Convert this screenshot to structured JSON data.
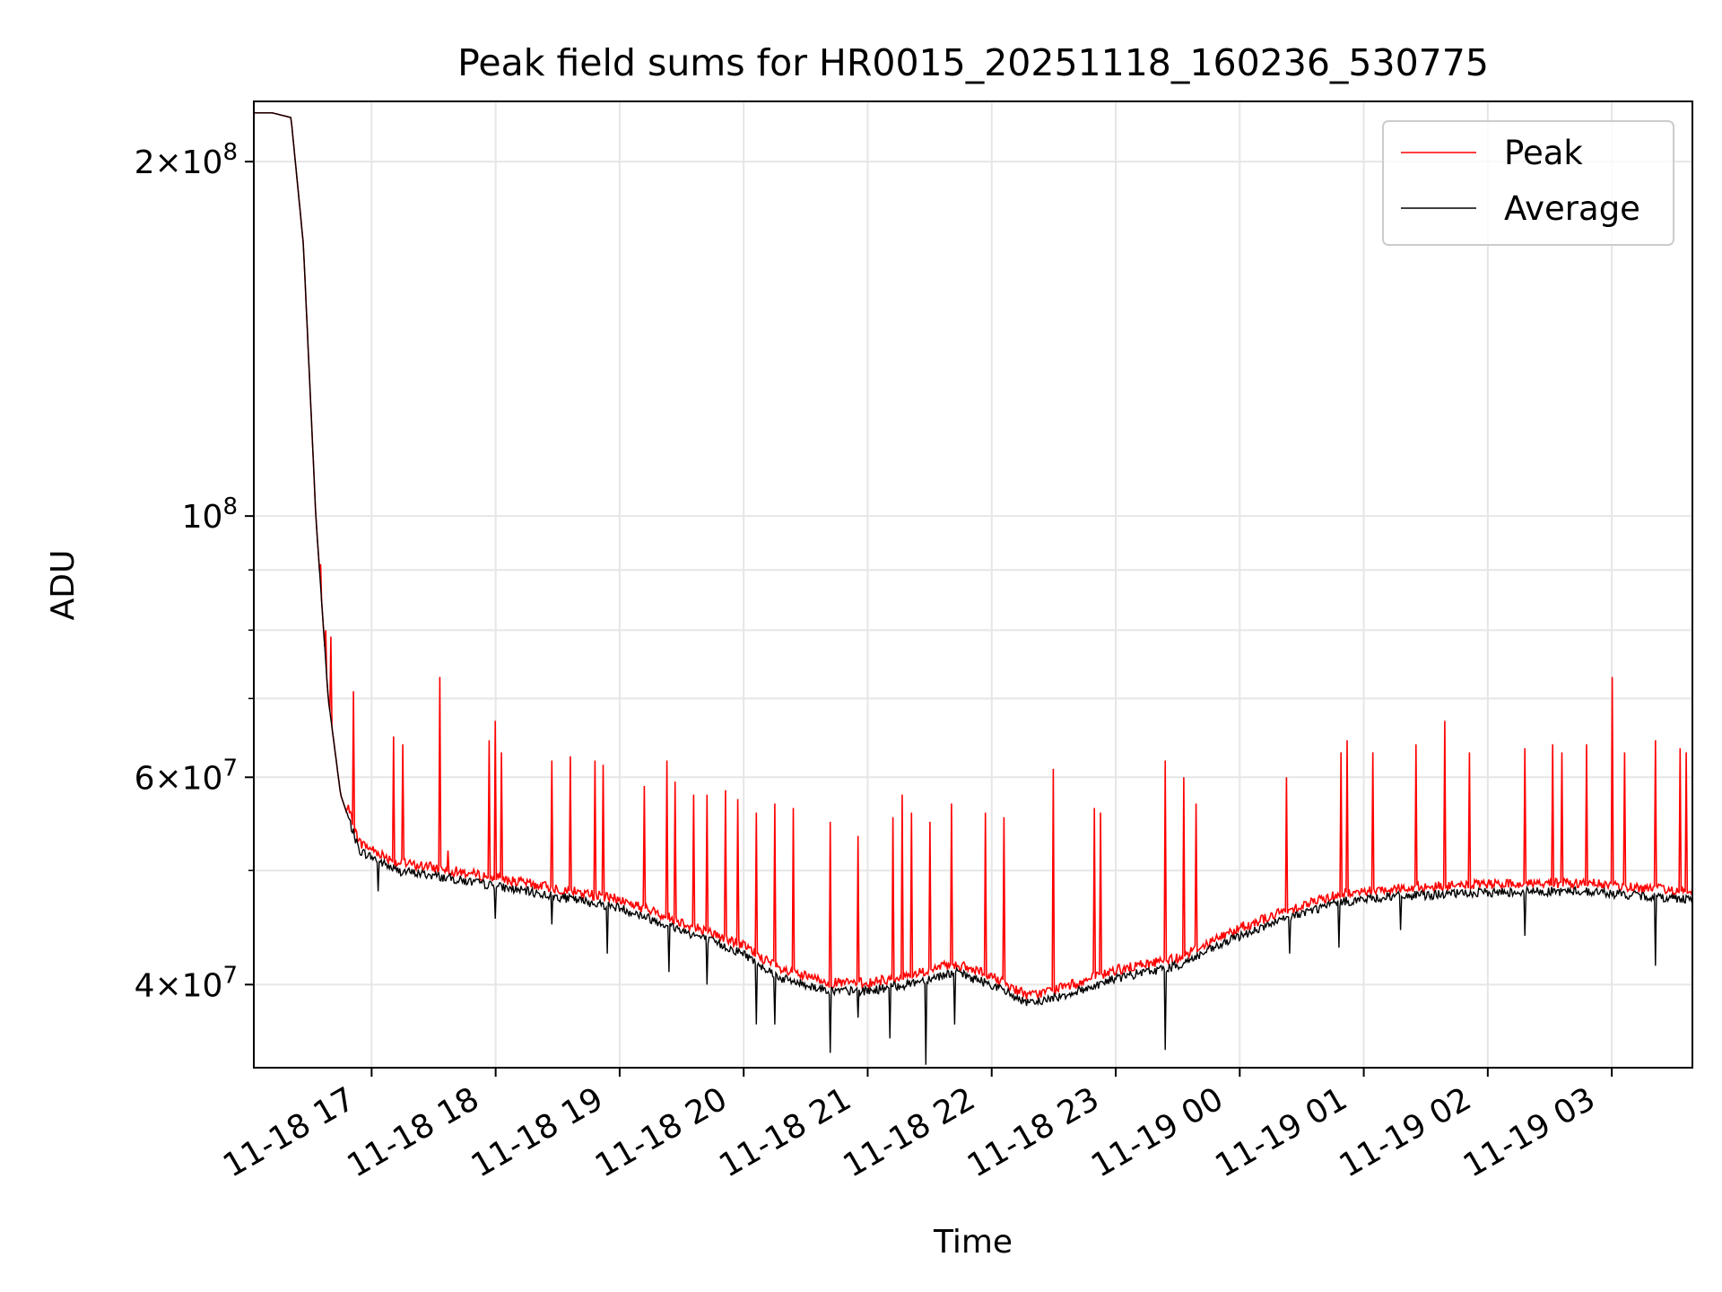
{
  "chart_data": {
    "type": "line",
    "title": "Peak field sums for HR0015_20251118_160236_530775",
    "xlabel": "Time",
    "ylabel": "ADU",
    "yscale": "log",
    "ylim": [
      34000000,
      225000000
    ],
    "xlim_hours": [
      16.05,
      27.65
    ],
    "grid": true,
    "legend_position": "top-right",
    "x_ticks": [
      {
        "hour": 17,
        "label": "11-18 17"
      },
      {
        "hour": 18,
        "label": "11-18 18"
      },
      {
        "hour": 19,
        "label": "11-18 19"
      },
      {
        "hour": 20,
        "label": "11-18 20"
      },
      {
        "hour": 21,
        "label": "11-18 21"
      },
      {
        "hour": 22,
        "label": "11-18 22"
      },
      {
        "hour": 23,
        "label": "11-18 23"
      },
      {
        "hour": 24,
        "label": "11-19 00"
      },
      {
        "hour": 25,
        "label": "11-19 01"
      },
      {
        "hour": 26,
        "label": "11-19 02"
      },
      {
        "hour": 27,
        "label": "11-19 03"
      }
    ],
    "y_ticks_major": [
      {
        "value": 40000000,
        "base": "4",
        "times": "×",
        "power": "10",
        "exp": "7"
      },
      {
        "value": 60000000,
        "base": "6",
        "times": "×",
        "power": "10",
        "exp": "7"
      },
      {
        "value": 100000000,
        "base": "",
        "times": "",
        "power": "10",
        "exp": "8"
      },
      {
        "value": 200000000,
        "base": "2",
        "times": "×",
        "power": "10",
        "exp": "8"
      }
    ],
    "y_minor_gridlines": [
      50000000,
      70000000,
      80000000,
      90000000
    ],
    "baseline_hours": [
      16.05,
      16.2,
      16.35,
      16.45,
      16.55,
      16.65,
      16.75,
      16.9,
      17.2,
      17.5,
      18.0,
      18.5,
      19.0,
      19.5,
      20.0,
      20.3,
      20.7,
      21.0,
      21.3,
      21.7,
      22.0,
      22.3,
      22.7,
      23.0,
      23.5,
      24.0,
      24.5,
      24.8,
      25.2,
      25.8,
      26.3,
      26.8,
      27.3,
      27.65
    ],
    "baseline_values": [
      220000000,
      220000000,
      218000000,
      170000000,
      100000000,
      70000000,
      58000000,
      52000000,
      50000000,
      49500000,
      48500000,
      47500000,
      46500000,
      44500000,
      42500000,
      40500000,
      39500000,
      39500000,
      40000000,
      41000000,
      40000000,
      38500000,
      39500000,
      40500000,
      41500000,
      44000000,
      46000000,
      47000000,
      47500000,
      47800000,
      48000000,
      48000000,
      47500000,
      47300000
    ],
    "series": [
      {
        "name": "Peak",
        "color": "#ff0000",
        "spikes": [
          {
            "hour": 16.59,
            "value": 91000000
          },
          {
            "hour": 16.63,
            "value": 80000000
          },
          {
            "hour": 16.67,
            "value": 79000000
          },
          {
            "hour": 16.85,
            "value": 71000000
          },
          {
            "hour": 17.18,
            "value": 65000000
          },
          {
            "hour": 17.25,
            "value": 64000000
          },
          {
            "hour": 17.55,
            "value": 73000000
          },
          {
            "hour": 17.62,
            "value": 52000000
          },
          {
            "hour": 17.95,
            "value": 64500000
          },
          {
            "hour": 18.0,
            "value": 67000000
          },
          {
            "hour": 18.05,
            "value": 63000000
          },
          {
            "hour": 18.45,
            "value": 62000000
          },
          {
            "hour": 18.6,
            "value": 62500000
          },
          {
            "hour": 18.8,
            "value": 62000000
          },
          {
            "hour": 18.87,
            "value": 61500000
          },
          {
            "hour": 19.2,
            "value": 59000000
          },
          {
            "hour": 19.38,
            "value": 62000000
          },
          {
            "hour": 19.45,
            "value": 59500000
          },
          {
            "hour": 19.6,
            "value": 58000000
          },
          {
            "hour": 19.7,
            "value": 58000000
          },
          {
            "hour": 19.85,
            "value": 58500000
          },
          {
            "hour": 19.95,
            "value": 57500000
          },
          {
            "hour": 20.1,
            "value": 56000000
          },
          {
            "hour": 20.25,
            "value": 57000000
          },
          {
            "hour": 20.4,
            "value": 56500000
          },
          {
            "hour": 20.7,
            "value": 55000000
          },
          {
            "hour": 20.92,
            "value": 53500000
          },
          {
            "hour": 21.2,
            "value": 55500000
          },
          {
            "hour": 21.28,
            "value": 58000000
          },
          {
            "hour": 21.35,
            "value": 56000000
          },
          {
            "hour": 21.5,
            "value": 55000000
          },
          {
            "hour": 21.68,
            "value": 57000000
          },
          {
            "hour": 21.95,
            "value": 56000000
          },
          {
            "hour": 22.1,
            "value": 55500000
          },
          {
            "hour": 22.5,
            "value": 61000000
          },
          {
            "hour": 22.83,
            "value": 56500000
          },
          {
            "hour": 22.88,
            "value": 56000000
          },
          {
            "hour": 23.4,
            "value": 62000000
          },
          {
            "hour": 23.55,
            "value": 60000000
          },
          {
            "hour": 23.65,
            "value": 57000000
          },
          {
            "hour": 24.38,
            "value": 60000000
          },
          {
            "hour": 24.82,
            "value": 63000000
          },
          {
            "hour": 24.87,
            "value": 64500000
          },
          {
            "hour": 25.07,
            "value": 63000000
          },
          {
            "hour": 25.42,
            "value": 64000000
          },
          {
            "hour": 25.65,
            "value": 67000000
          },
          {
            "hour": 25.85,
            "value": 63000000
          },
          {
            "hour": 26.3,
            "value": 63500000
          },
          {
            "hour": 26.52,
            "value": 64000000
          },
          {
            "hour": 26.6,
            "value": 63000000
          },
          {
            "hour": 26.8,
            "value": 64000000
          },
          {
            "hour": 27.0,
            "value": 73000000
          },
          {
            "hour": 27.1,
            "value": 63000000
          },
          {
            "hour": 27.35,
            "value": 64500000
          },
          {
            "hour": 27.55,
            "value": 63500000
          },
          {
            "hour": 27.6,
            "value": 63000000
          }
        ]
      },
      {
        "name": "Average",
        "color": "#000000",
        "dips": [
          {
            "hour": 17.05,
            "value": 48000000
          },
          {
            "hour": 18.0,
            "value": 45500000
          },
          {
            "hour": 18.45,
            "value": 45000000
          },
          {
            "hour": 18.9,
            "value": 42500000
          },
          {
            "hour": 19.4,
            "value": 41000000
          },
          {
            "hour": 19.7,
            "value": 40000000
          },
          {
            "hour": 20.1,
            "value": 37000000
          },
          {
            "hour": 20.25,
            "value": 37000000
          },
          {
            "hour": 20.7,
            "value": 35000000
          },
          {
            "hour": 20.92,
            "value": 37500000
          },
          {
            "hour": 21.18,
            "value": 36000000
          },
          {
            "hour": 21.47,
            "value": 34200000
          },
          {
            "hour": 21.7,
            "value": 37000000
          },
          {
            "hour": 23.4,
            "value": 35200000
          },
          {
            "hour": 24.4,
            "value": 42500000
          },
          {
            "hour": 24.8,
            "value": 43000000
          },
          {
            "hour": 25.3,
            "value": 44500000
          },
          {
            "hour": 26.3,
            "value": 44000000
          },
          {
            "hour": 27.35,
            "value": 41500000
          }
        ]
      }
    ]
  }
}
